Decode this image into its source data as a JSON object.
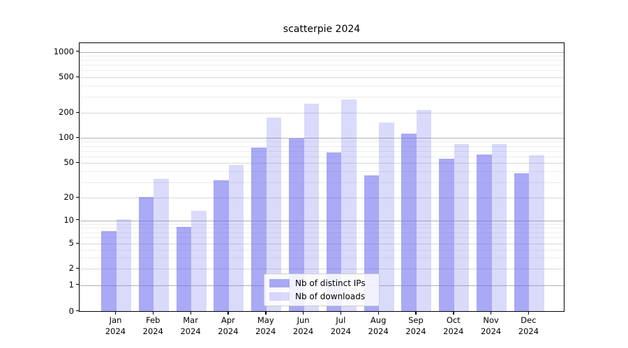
{
  "title": "scatterpie 2024",
  "colors": {
    "bar_base": "#6a6af0",
    "ips_fill": "rgba(106,106,240,0.58)",
    "downloads_fill": "rgba(106,106,240,0.25)",
    "grid_decade": "#b2b2b2",
    "grid_major": "#d8d8d8",
    "grid_minor": "#ededed",
    "axis": "#000000"
  },
  "legend": {
    "items": [
      {
        "label": "Nb of distinct IPs",
        "series_key": "ips"
      },
      {
        "label": "Nb of downloads",
        "series_key": "downloads"
      }
    ]
  },
  "chart_data": {
    "type": "bar",
    "title": "scatterpie 2024",
    "categories": [
      "Jan 2024",
      "Feb 2024",
      "Mar 2024",
      "Apr 2024",
      "May 2024",
      "Jun 2024",
      "Jul 2024",
      "Aug 2024",
      "Sep 2024",
      "Oct 2024",
      "Nov 2024",
      "Dec 2024"
    ],
    "series": [
      {
        "name": "Nb of distinct IPs",
        "key": "ips",
        "values": [
          7,
          20,
          8,
          31,
          74,
          95,
          65,
          35,
          110,
          55,
          61,
          37
        ]
      },
      {
        "name": "Nb of downloads",
        "key": "downloads",
        "values": [
          10,
          32,
          13,
          46,
          170,
          245,
          275,
          148,
          210,
          81,
          81,
          60
        ]
      }
    ],
    "xlabel": "",
    "ylabel": "",
    "yscale": "symlog",
    "yticks": [
      0,
      1,
      2,
      5,
      10,
      20,
      50,
      100,
      200,
      500,
      1000
    ],
    "minor_yticks": [
      3,
      4,
      6,
      7,
      8,
      9,
      30,
      40,
      60,
      70,
      80,
      90,
      300,
      400,
      600,
      700,
      800,
      900
    ],
    "decade_ticks": [
      1,
      10,
      100,
      1000
    ],
    "ylim": [
      0,
      1270
    ],
    "grid": "both",
    "legend_position": "lower center"
  }
}
